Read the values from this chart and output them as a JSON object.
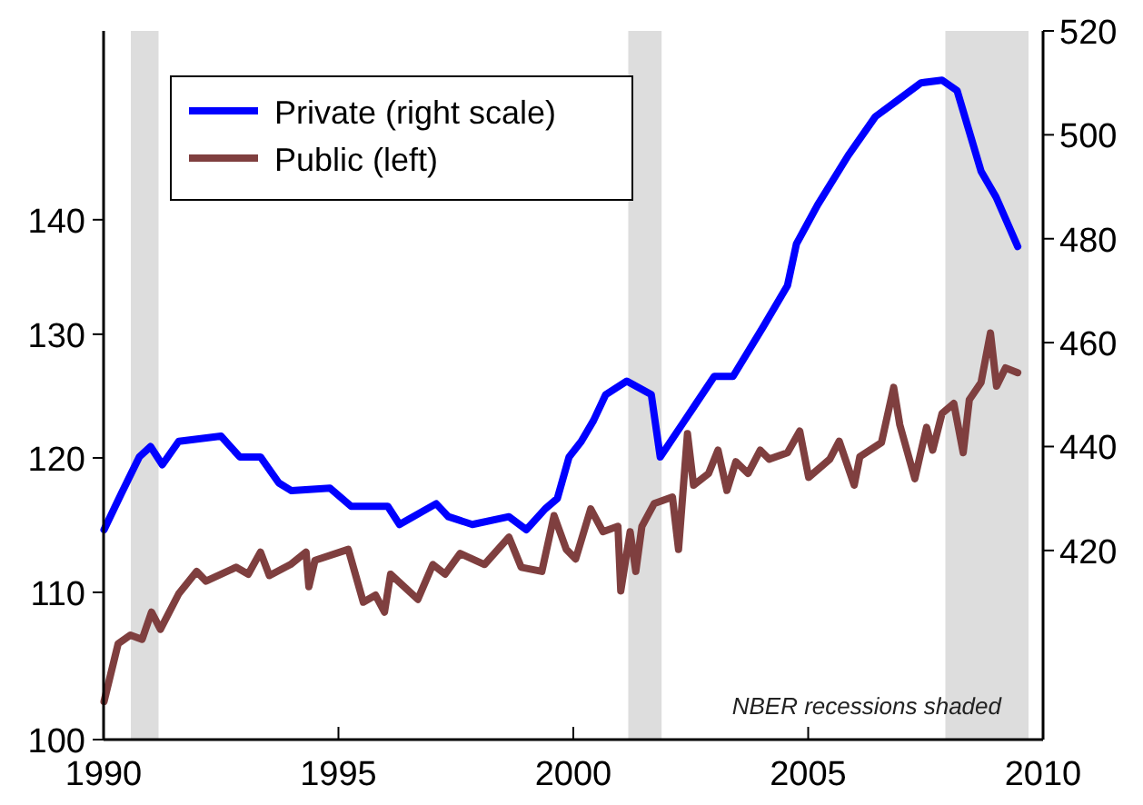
{
  "chart_data": {
    "type": "line",
    "annotations": [
      "NBER recessions shaded"
    ],
    "xlim": [
      1990,
      2010
    ],
    "xticks": [
      1990,
      1995,
      2000,
      2005,
      2010
    ],
    "ylim": [
      100,
      158.2
    ],
    "yticks": [
      100,
      110,
      120,
      130,
      140
    ],
    "y2lim": [
      383.6,
      520
    ],
    "y2ticks": [
      420,
      440,
      460,
      480,
      500,
      520
    ],
    "log": true,
    "grid": false,
    "legend": "top left",
    "line_style": "solid",
    "marker": "none",
    "bands": [
      {
        "axis": "x",
        "from": 1990.58,
        "to": 1991.17,
        "color": "#dddddd"
      },
      {
        "axis": "x",
        "from": 2001.17,
        "to": 2001.88,
        "color": "#dddddd"
      },
      {
        "axis": "x",
        "from": 2007.92,
        "to": 2009.69,
        "color": "#dddddd"
      }
    ],
    "series": [
      {
        "name": "Private (right scale)",
        "color": "#0000ff",
        "axis": "y2",
        "x": [
          1990.01,
          1990.38,
          1990.76,
          1991.0,
          1991.25,
          1991.6,
          1992.5,
          1992.9,
          1993.34,
          1993.73,
          1994.0,
          1994.82,
          1995.27,
          1996.05,
          1996.3,
          1997.08,
          1997.34,
          1997.85,
          1998.63,
          1999.0,
          1999.4,
          1999.66,
          1999.91,
          2000.17,
          2000.43,
          2000.69,
          2001.14,
          2001.66,
          2001.85,
          2002.37,
          2003.0,
          2003.4,
          2004.04,
          2004.56,
          2004.75,
          2005.2,
          2005.85,
          2006.43,
          2006.88,
          2007.4,
          2007.85,
          2008.17,
          2008.68,
          2009.0,
          2009.46
        ],
        "values": [
          424,
          431,
          438,
          440,
          436.5,
          441,
          442,
          438,
          438,
          433,
          431.5,
          432,
          428.5,
          428.5,
          425,
          429,
          426.5,
          425,
          426.5,
          424,
          428,
          430,
          438,
          441,
          445,
          450,
          452.6,
          450,
          438,
          445,
          453.5,
          453.5,
          463,
          471,
          479,
          486.5,
          496,
          503.5,
          506.5,
          510,
          510.5,
          508.5,
          493,
          488,
          478.5
        ]
      },
      {
        "name": "Public (left)",
        "color": "#7f3f3f",
        "axis": "y",
        "x": [
          1990.01,
          1990.31,
          1990.57,
          1990.82,
          1991.02,
          1991.21,
          1991.6,
          1991.98,
          1992.18,
          1992.82,
          1993.08,
          1993.34,
          1993.53,
          1993.98,
          1994.31,
          1994.37,
          1994.5,
          1995.21,
          1995.53,
          1995.79,
          1995.98,
          1996.11,
          1996.69,
          1997.01,
          1997.27,
          1997.59,
          1998.11,
          1998.63,
          1998.89,
          1999.33,
          1999.59,
          1999.85,
          2000.05,
          2000.37,
          2000.63,
          2000.95,
          2001.01,
          2001.21,
          2001.33,
          2001.46,
          2001.72,
          2002.11,
          2002.24,
          2002.43,
          2002.56,
          2002.88,
          2003.08,
          2003.27,
          2003.46,
          2003.72,
          2003.98,
          2004.17,
          2004.56,
          2004.82,
          2005.01,
          2005.46,
          2005.66,
          2005.98,
          2006.1,
          2006.56,
          2006.82,
          2006.95,
          2007.27,
          2007.52,
          2007.65,
          2007.85,
          2008.1,
          2008.3,
          2008.43,
          2008.68,
          2008.88,
          2009.01,
          2009.2,
          2009.46
        ],
        "values": [
          102.5,
          106.4,
          107,
          106.7,
          108.6,
          107.4,
          109.9,
          111.5,
          110.8,
          111.8,
          111.3,
          112.9,
          111.2,
          112,
          112.9,
          110.4,
          112.3,
          113.1,
          109.3,
          109.8,
          108.6,
          111.3,
          109.5,
          112,
          111.3,
          112.8,
          112,
          114,
          111.8,
          111.5,
          115.6,
          113.1,
          112.4,
          116.1,
          114.4,
          114.8,
          110.1,
          114.4,
          111.5,
          114.8,
          116.5,
          117,
          113.1,
          121.9,
          117.9,
          118.8,
          120.6,
          117.5,
          119.7,
          118.8,
          120.6,
          119.9,
          120.4,
          122.1,
          118.5,
          119.9,
          121.3,
          117.9,
          120.1,
          121.2,
          125.6,
          122.6,
          118.4,
          122.4,
          120.6,
          123.5,
          124.3,
          120.4,
          124.6,
          126,
          130.1,
          125.7,
          127.2,
          126.8
        ]
      }
    ]
  }
}
